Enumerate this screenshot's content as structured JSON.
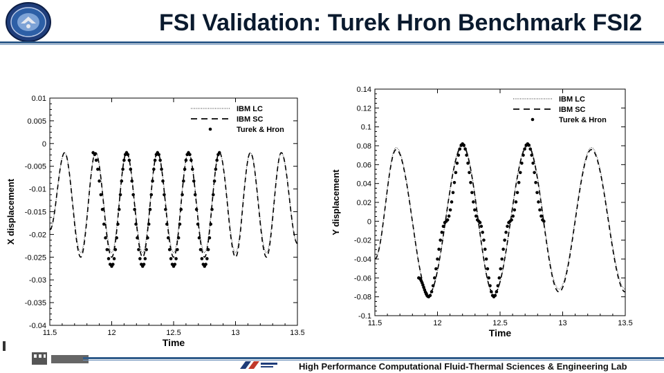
{
  "header": {
    "title": "FSI Validation: Turek Hron Benchmark FSI2"
  },
  "footer": {
    "lab_name": "High Performance Computational Fluid-Thermal Sciences & Engineering Lab"
  },
  "colors": {
    "accent": "#2f5b8a",
    "title": "#0a1a2e"
  },
  "chart_data": [
    {
      "type": "line",
      "xlabel": "Time",
      "ylabel": "X displacement",
      "xlim": [
        11.5,
        13.5
      ],
      "ylim": [
        -0.04,
        0.01
      ],
      "xticks": [
        "11.5",
        "12",
        "12.5",
        "13",
        "13.5"
      ],
      "yticks": [
        "0.01",
        "0.005",
        "0",
        "-0.005",
        "-0.01",
        "-0.015",
        "-0.02",
        "-0.025",
        "-0.03",
        "-0.035",
        "-0.04"
      ],
      "legend_position": "top-right",
      "series": [
        {
          "name": "IBM LC",
          "style": "dotted",
          "x": [
            11.5,
            11.62,
            11.75,
            11.87,
            12.0,
            12.12,
            12.25,
            12.37,
            12.5,
            12.62,
            12.75,
            12.87,
            13.0,
            13.12,
            13.25,
            13.37,
            13.5
          ],
          "values": [
            -0.019,
            -0.002,
            -0.024,
            -0.002,
            -0.024,
            -0.002,
            -0.024,
            -0.002,
            -0.024,
            -0.002,
            -0.024,
            -0.002,
            -0.024,
            -0.002,
            -0.024,
            -0.002,
            -0.022
          ]
        },
        {
          "name": "IBM SC",
          "style": "dashed",
          "x": [
            11.5,
            11.62,
            11.75,
            11.87,
            12.0,
            12.12,
            12.25,
            12.37,
            12.5,
            12.62,
            12.75,
            12.87,
            13.0,
            13.12,
            13.25,
            13.37,
            13.5
          ],
          "values": [
            -0.019,
            -0.002,
            -0.025,
            -0.002,
            -0.025,
            -0.002,
            -0.025,
            -0.002,
            -0.025,
            -0.002,
            -0.025,
            -0.002,
            -0.025,
            -0.002,
            -0.025,
            -0.002,
            -0.022
          ]
        },
        {
          "name": "Turek & Hron",
          "style": "markers",
          "x": [
            11.85,
            12.0,
            12.12,
            12.25,
            12.37,
            12.5,
            12.62,
            12.75,
            12.87
          ],
          "values": [
            -0.002,
            -0.027,
            -0.002,
            -0.027,
            -0.002,
            -0.027,
            -0.002,
            -0.027,
            -0.002
          ]
        }
      ]
    },
    {
      "type": "line",
      "xlabel": "Time",
      "ylabel": "Y displacement",
      "xlim": [
        11.5,
        13.5
      ],
      "ylim": [
        -0.1,
        0.14
      ],
      "xticks": [
        "11.5",
        "12",
        "12.5",
        "13",
        "13.5"
      ],
      "yticks": [
        "0.14",
        "0.12",
        "0.1",
        "0.08",
        "0.06",
        "0.04",
        "0.02",
        "0",
        "-0.02",
        "-0.04",
        "-0.06",
        "-0.08",
        "-0.1"
      ],
      "legend_position": "top-right",
      "series": [
        {
          "name": "IBM LC",
          "style": "dotted",
          "x": [
            11.5,
            11.67,
            11.93,
            12.2,
            12.45,
            12.72,
            12.97,
            13.23,
            13.5
          ],
          "values": [
            -0.04,
            0.078,
            -0.078,
            0.082,
            -0.078,
            0.082,
            -0.072,
            0.078,
            -0.072
          ]
        },
        {
          "name": "IBM SC",
          "style": "dashed",
          "x": [
            11.5,
            11.67,
            11.93,
            12.2,
            12.45,
            12.72,
            12.97,
            13.23,
            13.5
          ],
          "values": [
            -0.04,
            0.076,
            -0.077,
            0.08,
            -0.077,
            0.08,
            -0.075,
            0.076,
            -0.075
          ]
        },
        {
          "name": "Turek & Hron",
          "style": "markers",
          "x": [
            11.85,
            11.93,
            12.07,
            12.2,
            12.33,
            12.45,
            12.58,
            12.72,
            12.85
          ],
          "values": [
            -0.06,
            -0.08,
            0.0,
            0.082,
            0.0,
            -0.08,
            0.0,
            0.082,
            0.0
          ]
        }
      ]
    }
  ]
}
